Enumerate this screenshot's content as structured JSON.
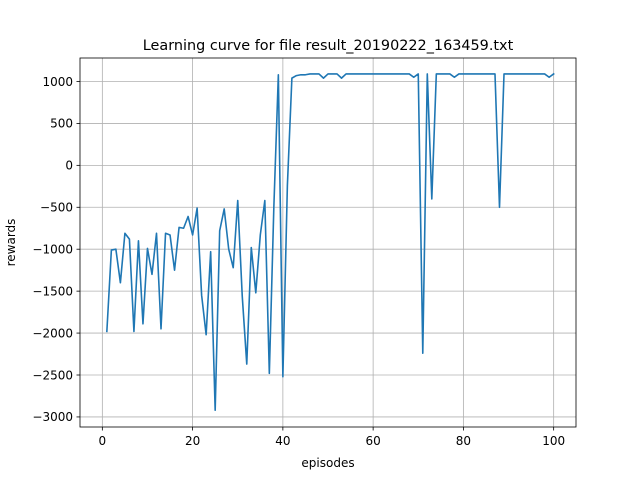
{
  "chart_data": {
    "type": "line",
    "title": "Learning curve for file result_20190222_163459.txt",
    "xlabel": "episodes",
    "ylabel": "rewards",
    "xlim": [
      -4.95,
      104.95
    ],
    "ylim": [
      -3120,
      1280
    ],
    "xticks": [
      0,
      20,
      40,
      60,
      80,
      100
    ],
    "yticks": [
      -3000,
      -2500,
      -2000,
      -1500,
      -1000,
      -500,
      0,
      500,
      1000
    ],
    "xtick_labels": [
      "0",
      "20",
      "40",
      "60",
      "80",
      "100"
    ],
    "ytick_labels": [
      "−3000",
      "−2500",
      "−2000",
      "−1500",
      "−1000",
      "−500",
      "0",
      "500",
      "1000"
    ],
    "grid": true,
    "line_color": "#1f77b4",
    "series": [
      {
        "x": [
          1,
          2,
          3,
          4,
          5,
          6,
          7,
          8,
          9,
          10,
          11,
          12,
          13,
          14,
          15,
          16,
          17,
          18,
          19,
          20,
          21,
          22,
          23,
          24,
          25,
          26,
          27,
          28,
          29,
          30,
          31,
          32,
          33,
          34,
          35,
          36,
          37,
          38,
          39,
          40,
          41,
          42,
          43,
          44,
          45,
          46,
          47,
          48,
          49,
          50,
          51,
          52,
          53,
          54,
          55,
          56,
          57,
          58,
          59,
          60,
          61,
          62,
          63,
          64,
          65,
          66,
          67,
          68,
          69,
          70,
          71,
          72,
          73,
          74,
          75,
          76,
          77,
          78,
          79,
          80,
          81,
          82,
          83,
          84,
          85,
          86,
          87,
          88,
          89,
          90,
          91,
          92,
          93,
          94,
          95,
          96,
          97,
          98,
          99,
          100
        ],
        "values": [
          -1980,
          -1010,
          -1000,
          -1400,
          -810,
          -880,
          -1980,
          -900,
          -1890,
          -990,
          -1300,
          -810,
          -1950,
          -810,
          -830,
          -1250,
          -740,
          -750,
          -610,
          -830,
          -510,
          -1550,
          -2020,
          -1030,
          -2920,
          -780,
          -520,
          -1000,
          -1220,
          -420,
          -1560,
          -2370,
          -980,
          -1520,
          -830,
          -420,
          -2480,
          -500,
          1080,
          -2520,
          -240,
          1040,
          1070,
          1080,
          1080,
          1090,
          1090,
          1090,
          1040,
          1090,
          1090,
          1090,
          1040,
          1090,
          1090,
          1090,
          1090,
          1090,
          1090,
          1090,
          1090,
          1090,
          1090,
          1090,
          1090,
          1090,
          1090,
          1090,
          1050,
          1090,
          -2240,
          1090,
          -400,
          1090,
          1090,
          1090,
          1090,
          1050,
          1090,
          1090,
          1090,
          1090,
          1090,
          1090,
          1090,
          1090,
          1090,
          -500,
          1090,
          1090,
          1090,
          1090,
          1090,
          1090,
          1090,
          1090,
          1090,
          1090,
          1050,
          1090
        ]
      }
    ]
  }
}
